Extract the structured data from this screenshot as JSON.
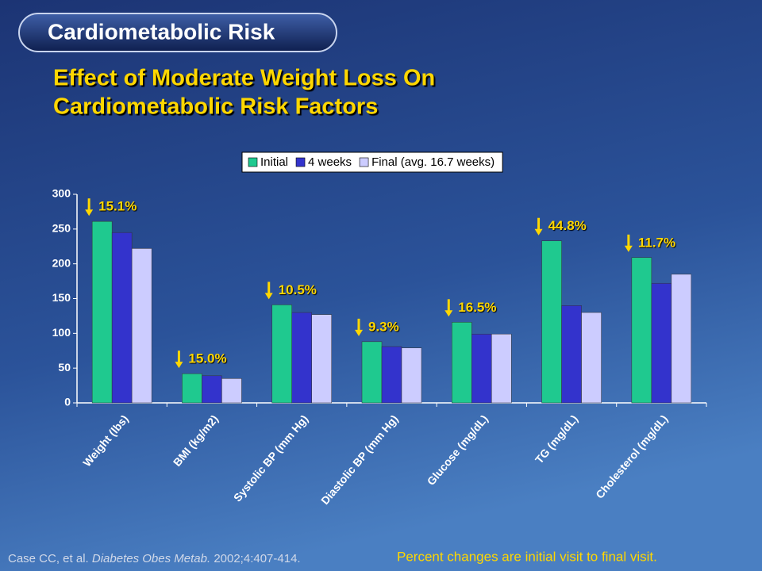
{
  "slide": {
    "header": "Cardiometabolic Risk",
    "title_lines": [
      "Effect of Moderate Weight Loss On",
      "Cardiometabolic Risk Factors"
    ],
    "citation": {
      "authors": "Case CC, et al.",
      "journal": "Diabetes Obes Metab.",
      "ref": "2002;4:407-414."
    },
    "footnote": "Percent changes are initial visit to final visit."
  },
  "chart_data": {
    "type": "bar",
    "categories": [
      "Weight (lbs)",
      "BMI (kg/m2)",
      "Systolic BP (mm Hg)",
      "Diastolic BP (mm Hg)",
      "Glucose (mg/dL)",
      "TG (mg/dL)",
      "Cholesterol (mg/dL)"
    ],
    "series": [
      {
        "name": "Initial",
        "color": "#1fc98f",
        "values": [
          261,
          42,
          141,
          88,
          116,
          233,
          209
        ]
      },
      {
        "name": "4 weeks",
        "color": "#3333cc",
        "values": [
          245,
          39,
          130,
          81,
          99,
          140,
          172
        ]
      },
      {
        "name": "Final (avg. 16.7 weeks)",
        "color": "#ccccff",
        "values": [
          222,
          35,
          127,
          79,
          99,
          130,
          185
        ]
      }
    ],
    "annotations": [
      "15.1%",
      "15.0%",
      "10.5%",
      "9.3%",
      "16.5%",
      "44.8%",
      "11.7%"
    ],
    "ylim": [
      0,
      300
    ],
    "yticks": [
      0,
      50,
      100,
      150,
      200,
      250,
      300
    ],
    "grid": false,
    "legend": "top"
  }
}
